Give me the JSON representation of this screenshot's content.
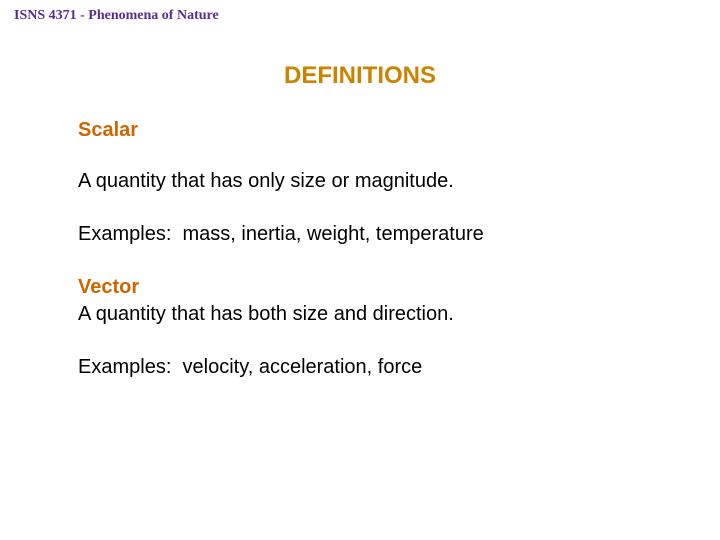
{
  "colors": {
    "course_header": "#5c2c8e",
    "title": "#cc8400",
    "term": "#cc6600",
    "body_text": "#000000",
    "background": "#ffffff"
  },
  "fonts": {
    "course_header_family": "Times New Roman",
    "course_header_size_pt": 11,
    "title_size_pt": 18,
    "body_size_pt": 15,
    "term_weight": "bold",
    "title_weight": "bold"
  },
  "header": {
    "course": "ISNS 4371 - Phenomena of Nature"
  },
  "title": "DEFINITIONS",
  "sections": [
    {
      "term": "Scalar",
      "definition": "A quantity that has only size or magnitude.",
      "examples_label": "Examples:",
      "examples_text": "mass, inertia, weight, temperature"
    },
    {
      "term": "Vector",
      "definition": "A quantity that has both size and direction.",
      "examples_label": "Examples:",
      "examples_text": "velocity, acceleration, force"
    }
  ]
}
